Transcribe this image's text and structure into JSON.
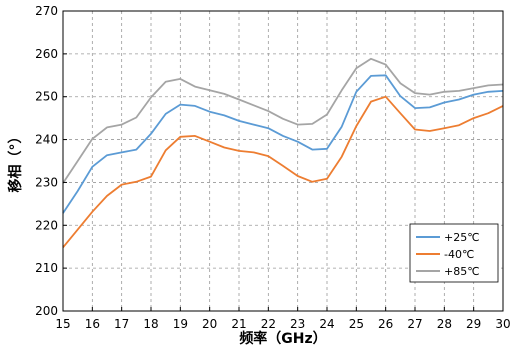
{
  "chart_data": {
    "type": "line",
    "xlabel": "频率（GHz）",
    "ylabel": "移相（°）",
    "xlim": [
      15,
      30
    ],
    "ylim": [
      200,
      270
    ],
    "xticks": [
      15,
      16,
      17,
      18,
      19,
      20,
      21,
      22,
      23,
      24,
      25,
      26,
      27,
      28,
      29,
      30
    ],
    "yticks": [
      200,
      210,
      220,
      230,
      240,
      250,
      260,
      270
    ],
    "grid": true,
    "legend_position": "bottom-right",
    "x": [
      15,
      15.5,
      16,
      16.5,
      17,
      17.5,
      18,
      18.5,
      19,
      19.5,
      20,
      20.5,
      21,
      21.5,
      22,
      22.5,
      23,
      23.5,
      24,
      24.5,
      25,
      25.5,
      26,
      26.5,
      27,
      27.5,
      28,
      28.5,
      29,
      29.5,
      30
    ],
    "series": [
      {
        "name": "+25℃",
        "color": "#5B9BD5",
        "values": [
          223,
          228,
          233.5,
          236.5,
          237,
          237.5,
          241.5,
          246,
          248,
          248,
          246.5,
          245.5,
          244.5,
          243.5,
          242.5,
          241,
          239.5,
          237.5,
          238,
          243,
          251,
          255,
          255,
          250,
          247.5,
          247.5,
          248.5,
          249.5,
          250.5,
          251,
          251.5
        ]
      },
      {
        "name": "-40℃",
        "color": "#ED7D31",
        "values": [
          215,
          219,
          223,
          227,
          229.5,
          230,
          231.5,
          237.5,
          240.5,
          241,
          239.5,
          238,
          237.5,
          237,
          236,
          234,
          231.5,
          230,
          231,
          236,
          243,
          249,
          250,
          246,
          242.5,
          242,
          242.5,
          243.5,
          245,
          246,
          248
        ]
      },
      {
        "name": "+85℃",
        "color": "#A5A5A5",
        "values": [
          230,
          235,
          240,
          243,
          243.5,
          245,
          250,
          253.5,
          254,
          252.5,
          251.5,
          250.5,
          249.5,
          248,
          246.5,
          245,
          243.5,
          243.5,
          246,
          251.5,
          256.5,
          259,
          257.5,
          253,
          251,
          250.5,
          251,
          251.5,
          252,
          252.5,
          253
        ]
      }
    ]
  }
}
